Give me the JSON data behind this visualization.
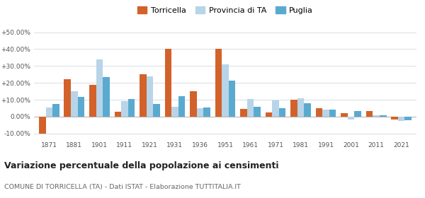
{
  "years": [
    1871,
    1881,
    1901,
    1911,
    1921,
    1931,
    1936,
    1951,
    1961,
    1971,
    1981,
    1991,
    2001,
    2011,
    2021
  ],
  "torricella": [
    -10.0,
    22.0,
    19.0,
    3.0,
    25.0,
    40.0,
    15.0,
    40.0,
    4.5,
    2.5,
    10.0,
    5.0,
    2.0,
    3.5,
    -1.5
  ],
  "provincia_ta": [
    5.5,
    15.0,
    34.0,
    9.0,
    24.0,
    6.0,
    5.0,
    31.0,
    10.5,
    9.5,
    11.0,
    4.0,
    -1.5,
    1.0,
    -2.5
  ],
  "puglia": [
    7.5,
    11.5,
    23.5,
    10.5,
    7.5,
    12.0,
    5.5,
    21.5,
    6.0,
    5.0,
    8.0,
    4.0,
    3.5,
    1.0,
    -2.0
  ],
  "color_torricella": "#d2622a",
  "color_provincia": "#b8d4e8",
  "color_puglia": "#5aaad0",
  "title": "Variazione percentuale della popolazione ai censimenti",
  "subtitle": "COMUNE DI TORRICELLA (TA) - Dati ISTAT - Elaborazione TUTTITALIA.IT",
  "ylim": [
    -13,
    55
  ],
  "yticks": [
    -10,
    0,
    10,
    20,
    30,
    40,
    50
  ],
  "bar_width": 0.27,
  "background_color": "#ffffff",
  "grid_color": "#d0d8e0",
  "legend_labels": [
    "Torricella",
    "Provincia di TA",
    "Puglia"
  ]
}
